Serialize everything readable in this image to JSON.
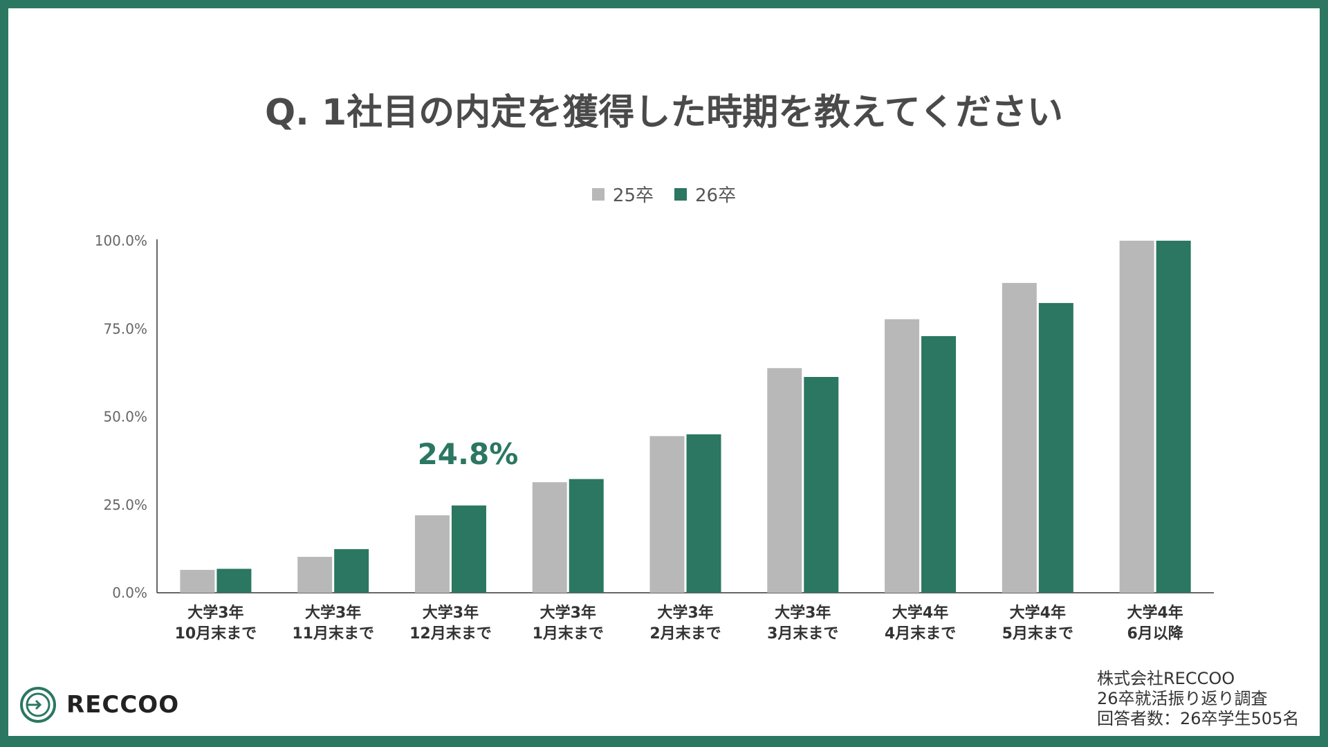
{
  "title": "Q. 1社目の内定を獲得した時期を教えてください",
  "source_lines": [
    "株式会社RECCOO",
    "26卒就活振り返り調査",
    "回答者数：26卒学生505名"
  ],
  "logo_text": "RECCOO",
  "chart_data": {
    "type": "bar",
    "title": "Q. 1社目の内定を獲得した時期を教えてください",
    "categories": [
      [
        "大学3年",
        "10月末まで"
      ],
      [
        "大学3年",
        "11月末まで"
      ],
      [
        "大学3年",
        "12月末まで"
      ],
      [
        "大学3年",
        "1月末まで"
      ],
      [
        "大学3年",
        "2月末まで"
      ],
      [
        "大学3年",
        "3月末まで"
      ],
      [
        "大学4年",
        "4月末まで"
      ],
      [
        "大学4年",
        "5月末まで"
      ],
      [
        "大学4年",
        "6月以降"
      ]
    ],
    "series": [
      {
        "name": "25卒",
        "color": "#b8b8b8",
        "values": [
          6.5,
          10.2,
          22.0,
          31.4,
          44.5,
          63.8,
          77.7,
          88.0,
          100.0
        ]
      },
      {
        "name": "26卒",
        "color": "#2b7761",
        "values": [
          6.8,
          12.4,
          24.8,
          32.3,
          45.0,
          61.3,
          72.9,
          82.3,
          100.0
        ]
      }
    ],
    "ylim": [
      0,
      100
    ],
    "yticks": [
      "0.0%",
      "25.0%",
      "50.0%",
      "75.0%",
      "100.0%"
    ],
    "ytick_values": [
      0,
      25,
      50,
      75,
      100
    ],
    "legend_position": "top",
    "grid": false,
    "annotation": {
      "text": "24.8%",
      "category_index": 2,
      "series_index": 1,
      "color": "#2b7761"
    }
  }
}
